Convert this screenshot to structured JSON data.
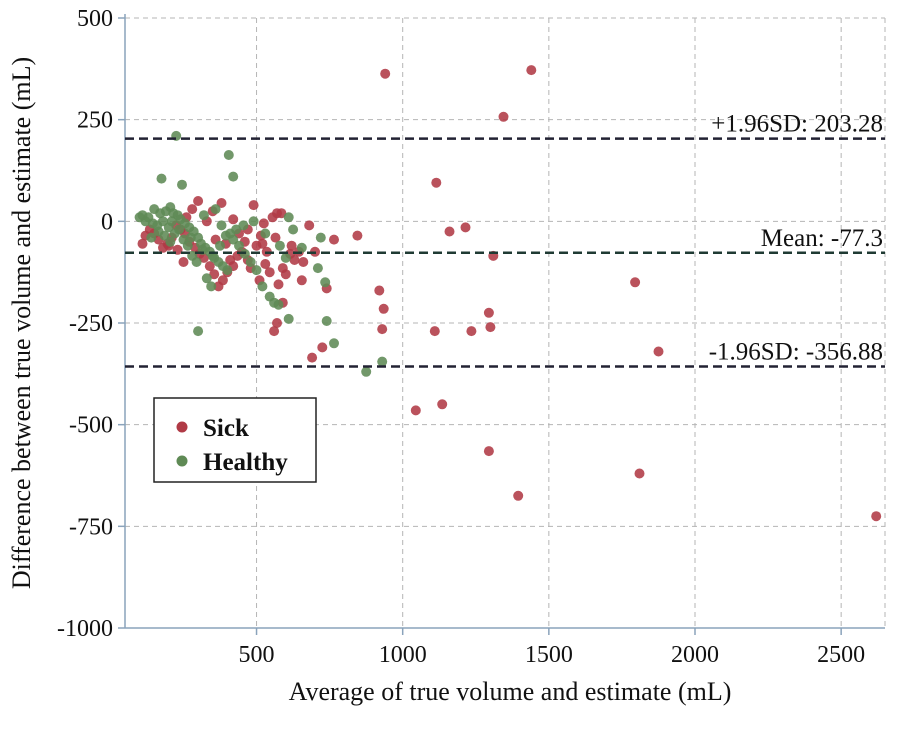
{
  "chart_data": {
    "type": "scatter",
    "xlabel": "Average of true volume and estimate (mL)",
    "ylabel": "Difference between true volume and estimate (mL)",
    "xlim": [
      50,
      2650
    ],
    "ylim": [
      -1000,
      500
    ],
    "x_ticks": [
      500,
      1000,
      1500,
      2000,
      2500
    ],
    "y_ticks": [
      500,
      250,
      0,
      -250,
      -500,
      -750,
      -1000
    ],
    "x_tick_labels": [
      "500",
      "1000",
      "1500",
      "2000",
      "2500"
    ],
    "y_tick_labels": [
      "500",
      "250",
      "0",
      "-250",
      "-500",
      "-750",
      "-1000"
    ],
    "grid": true,
    "legend_position": "bottom-left",
    "reference_lines": [
      {
        "value": 203.28,
        "label": "+1.96SD: 203.28",
        "color": "#222233"
      },
      {
        "value": -77.3,
        "label": "Mean: -77.3",
        "color": "#1f3a33"
      },
      {
        "value": -356.88,
        "label": "-1.96SD: -356.88",
        "color": "#222233"
      }
    ],
    "series": [
      {
        "name": "Sick",
        "color": "#b03a46",
        "points": [
          [
            940,
            363
          ],
          [
            1440,
            372
          ],
          [
            1345,
            257
          ],
          [
            1115,
            95
          ],
          [
            1160,
            -25
          ],
          [
            1215,
            -15
          ],
          [
            1310,
            -85
          ],
          [
            845,
            -35
          ],
          [
            765,
            -45
          ],
          [
            740,
            -165
          ],
          [
            920,
            -170
          ],
          [
            935,
            -215
          ],
          [
            930,
            -265
          ],
          [
            1110,
            -270
          ],
          [
            1235,
            -270
          ],
          [
            1295,
            -225
          ],
          [
            1300,
            -260
          ],
          [
            1795,
            -150
          ],
          [
            1875,
            -320
          ],
          [
            1045,
            -465
          ],
          [
            1135,
            -450
          ],
          [
            1295,
            -565
          ],
          [
            1395,
            -675
          ],
          [
            1810,
            -620
          ],
          [
            2620,
            -725
          ],
          [
            690,
            -335
          ],
          [
            725,
            -310
          ],
          [
            560,
            -270
          ],
          [
            570,
            -250
          ],
          [
            590,
            -200
          ],
          [
            680,
            -10
          ],
          [
            700,
            -75
          ],
          [
            655,
            -145
          ],
          [
            630,
            -95
          ],
          [
            615,
            -80
          ],
          [
            600,
            -130
          ],
          [
            575,
            -155
          ],
          [
            590,
            -115
          ],
          [
            585,
            20
          ],
          [
            570,
            20
          ],
          [
            555,
            10
          ],
          [
            525,
            -5
          ],
          [
            520,
            -55
          ],
          [
            515,
            -35
          ],
          [
            500,
            -60
          ],
          [
            490,
            40
          ],
          [
            470,
            -20
          ],
          [
            460,
            -50
          ],
          [
            450,
            -75
          ],
          [
            435,
            -85
          ],
          [
            420,
            -110
          ],
          [
            400,
            -125
          ],
          [
            385,
            -145
          ],
          [
            370,
            -160
          ],
          [
            355,
            -130
          ],
          [
            340,
            -110
          ],
          [
            320,
            -90
          ],
          [
            305,
            -80
          ],
          [
            290,
            -65
          ],
          [
            270,
            -50
          ],
          [
            255,
            -30
          ],
          [
            240,
            -20
          ],
          [
            225,
            -10
          ],
          [
            210,
            -40
          ],
          [
            195,
            -55
          ],
          [
            180,
            -65
          ],
          [
            165,
            -45
          ],
          [
            150,
            -30
          ],
          [
            135,
            -20
          ],
          [
            120,
            -35
          ],
          [
            110,
            -55
          ],
          [
            300,
            50
          ],
          [
            280,
            30
          ],
          [
            350,
            25
          ],
          [
            380,
            45
          ],
          [
            420,
            5
          ],
          [
            440,
            -30
          ],
          [
            410,
            -95
          ],
          [
            470,
            -95
          ],
          [
            530,
            -105
          ],
          [
            545,
            -125
          ],
          [
            250,
            -100
          ],
          [
            230,
            -70
          ],
          [
            200,
            -60
          ],
          [
            260,
            10
          ],
          [
            330,
            0
          ],
          [
            360,
            -45
          ],
          [
            395,
            -55
          ],
          [
            480,
            -115
          ],
          [
            510,
            -145
          ],
          [
            535,
            -75
          ],
          [
            565,
            -40
          ],
          [
            620,
            -60
          ],
          [
            645,
            -75
          ],
          [
            660,
            -100
          ]
        ]
      },
      {
        "name": "Healthy",
        "color": "#5f8a55",
        "points": [
          [
            225,
            210
          ],
          [
            405,
            163
          ],
          [
            420,
            110
          ],
          [
            245,
            90
          ],
          [
            175,
            105
          ],
          [
            130,
            10
          ],
          [
            150,
            30
          ],
          [
            170,
            20
          ],
          [
            190,
            25
          ],
          [
            205,
            35
          ],
          [
            215,
            20
          ],
          [
            230,
            15
          ],
          [
            240,
            5
          ],
          [
            255,
            -5
          ],
          [
            270,
            -15
          ],
          [
            285,
            -25
          ],
          [
            300,
            -40
          ],
          [
            310,
            -55
          ],
          [
            325,
            -65
          ],
          [
            340,
            -75
          ],
          [
            355,
            -90
          ],
          [
            370,
            -100
          ],
          [
            385,
            -110
          ],
          [
            400,
            -120
          ],
          [
            330,
            -140
          ],
          [
            345,
            -160
          ],
          [
            300,
            -270
          ],
          [
            560,
            -200
          ],
          [
            575,
            -205
          ],
          [
            610,
            -240
          ],
          [
            610,
            10
          ],
          [
            625,
            -20
          ],
          [
            655,
            -65
          ],
          [
            710,
            -115
          ],
          [
            720,
            -40
          ],
          [
            735,
            -150
          ],
          [
            740,
            -245
          ],
          [
            765,
            -300
          ],
          [
            875,
            -370
          ],
          [
            930,
            -345
          ],
          [
            140,
            -40
          ],
          [
            160,
            -10
          ],
          [
            180,
            0
          ],
          [
            200,
            -15
          ],
          [
            220,
            -30
          ],
          [
            250,
            -45
          ],
          [
            265,
            -60
          ],
          [
            280,
            -85
          ],
          [
            295,
            -100
          ],
          [
            320,
            15
          ],
          [
            360,
            30
          ],
          [
            380,
            -10
          ],
          [
            395,
            -35
          ],
          [
            420,
            -45
          ],
          [
            440,
            -60
          ],
          [
            460,
            -80
          ],
          [
            480,
            -100
          ],
          [
            500,
            -120
          ],
          [
            520,
            -160
          ],
          [
            545,
            -185
          ],
          [
            120,
            0
          ],
          [
            110,
            15
          ],
          [
            100,
            10
          ],
          [
            145,
            -5
          ],
          [
            165,
            -25
          ],
          [
            185,
            -35
          ],
          [
            205,
            -50
          ],
          [
            210,
            0
          ],
          [
            235,
            -20
          ],
          [
            275,
            -40
          ],
          [
            315,
            -70
          ],
          [
            350,
            -85
          ],
          [
            375,
            -60
          ],
          [
            410,
            -30
          ],
          [
            430,
            -20
          ],
          [
            455,
            -10
          ],
          [
            490,
            0
          ],
          [
            530,
            -30
          ],
          [
            580,
            -60
          ],
          [
            600,
            -90
          ]
        ]
      }
    ]
  }
}
